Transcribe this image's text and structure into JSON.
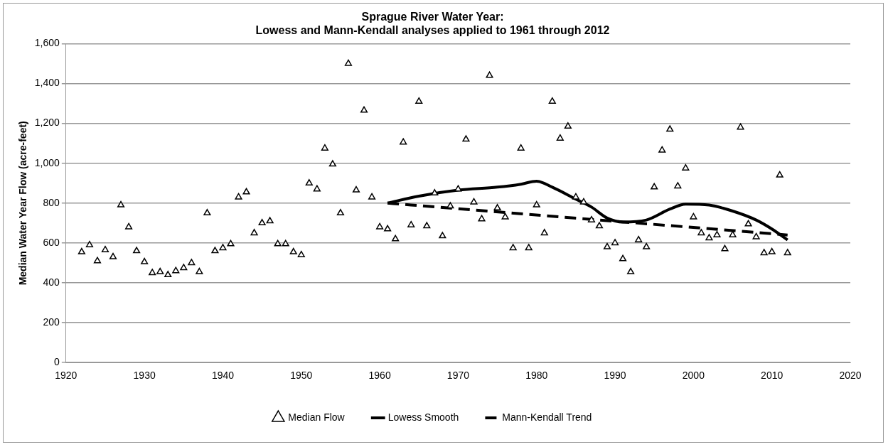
{
  "chart_data": {
    "type": "scatter",
    "title": "Sprague River Water Year:\nLowess and Mann-Kendall analyses applied to 1961 through 2012",
    "ylabel": "Median Water Year Flow (acre-feet)",
    "xlim": [
      1920,
      2020
    ],
    "xticks": [
      1920,
      1930,
      1940,
      1950,
      1960,
      1970,
      1980,
      1990,
      2000,
      2010,
      2020
    ],
    "ylim": [
      0,
      1600
    ],
    "yticks": [
      0,
      {
        "value": 200,
        "label": "200"
      },
      {
        "value": 400,
        "label": "400"
      },
      {
        "value": 600,
        "label": "600"
      },
      {
        "value": 800,
        "label": "800"
      },
      {
        "value": 1000,
        "label": "1,000"
      },
      {
        "value": 1200,
        "label": "1,200"
      },
      {
        "value": 1400,
        "label": "1,400"
      },
      {
        "value": 1600,
        "label": "1,600"
      }
    ],
    "grid": "y",
    "legend": "bottom",
    "series": [
      {
        "name": "Median Flow",
        "color": "#000000",
        "marker": "triangle",
        "x": [
          1922,
          1923,
          1924,
          1925,
          1926,
          1927,
          1928,
          1929,
          1930,
          1931,
          1932,
          1933,
          1934,
          1935,
          1936,
          1937,
          1938,
          1939,
          1940,
          1941,
          1942,
          1943,
          1944,
          1945,
          1946,
          1947,
          1948,
          1949,
          1950,
          1951,
          1952,
          1953,
          1954,
          1955,
          1956,
          1957,
          1958,
          1959,
          1960,
          1961,
          1962,
          1963,
          1964,
          1965,
          1966,
          1967,
          1968,
          1969,
          1970,
          1971,
          1972,
          1973,
          1974,
          1975,
          1976,
          1977,
          1978,
          1979,
          1980,
          1981,
          1982,
          1983,
          1984,
          1985,
          1986,
          1987,
          1988,
          1989,
          1990,
          1991,
          1992,
          1993,
          1994,
          1995,
          1996,
          1997,
          1998,
          1999,
          2000,
          2001,
          2002,
          2003,
          2004,
          2005,
          2006,
          2007,
          2008,
          2009,
          2010,
          2011,
          2012
        ],
        "values": [
          555,
          590,
          510,
          565,
          530,
          790,
          680,
          560,
          505,
          450,
          455,
          440,
          460,
          475,
          500,
          455,
          750,
          560,
          575,
          595,
          830,
          855,
          650,
          700,
          710,
          595,
          595,
          555,
          540,
          900,
          870,
          1075,
          995,
          750,
          1500,
          865,
          1265,
          830,
          680,
          670,
          620,
          1105,
          690,
          1310,
          685,
          850,
          635,
          785,
          870,
          1120,
          805,
          720,
          1440,
          775,
          730,
          575,
          1075,
          575,
          790,
          650,
          1310,
          1125,
          1185,
          830,
          805,
          715,
          685,
          580,
          600,
          520,
          455,
          615,
          580,
          880,
          1065,
          1170,
          885,
          975,
          730,
          650,
          625,
          640,
          570,
          640,
          1180,
          695,
          630,
          550,
          555,
          940,
          550
        ]
      },
      {
        "name": "Lowess Smooth",
        "type": "line",
        "color": "#000000",
        "marker": "none",
        "line_style": "solid",
        "x": [
          1961,
          1965,
          1970,
          1975,
          1978,
          1980,
          1982,
          1985,
          1987,
          1989,
          1991,
          1994,
          1997,
          1999,
          2002,
          2005,
          2008,
          2010,
          2012
        ],
        "values": [
          800,
          835,
          865,
          880,
          895,
          910,
          880,
          820,
          780,
          725,
          705,
          715,
          770,
          795,
          790,
          760,
          715,
          670,
          615
        ]
      },
      {
        "name": "Mann-Kendall Trend",
        "type": "line",
        "color": "#000000",
        "marker": "none",
        "line_style": "dashed",
        "x": [
          1961,
          2012
        ],
        "values": [
          800,
          640
        ]
      }
    ]
  }
}
